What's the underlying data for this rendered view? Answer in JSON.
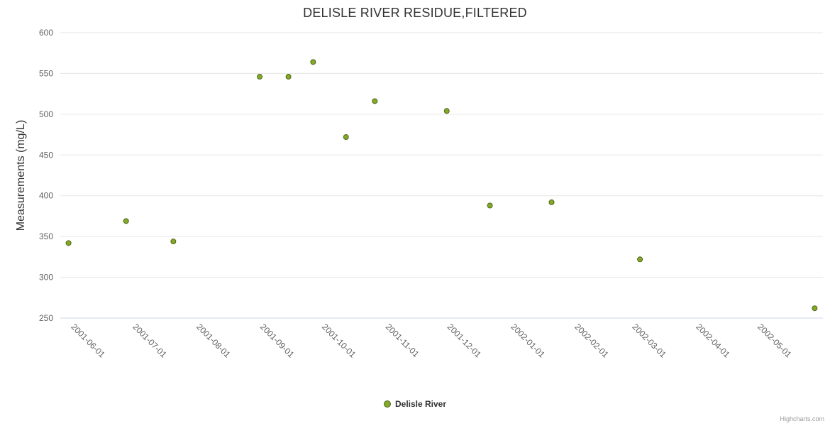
{
  "chart_data": {
    "type": "scatter",
    "title": "DELISLE RIVER RESIDUE,FILTERED",
    "xlabel": "",
    "ylabel": "Measurements (mg/L)",
    "ylim": [
      250,
      600
    ],
    "y_ticks": [
      250,
      300,
      350,
      400,
      450,
      500,
      550,
      600
    ],
    "x_ticks": [
      "2001-06-01",
      "2001-07-01",
      "2001-08-01",
      "2001-09-01",
      "2001-10-01",
      "2001-11-01",
      "2001-12-01",
      "2002-01-01",
      "2002-02-01",
      "2002-03-01",
      "2002-04-01",
      "2002-05-01"
    ],
    "x_range": [
      "2001-05-28",
      "2002-06-03"
    ],
    "grid": true,
    "legend_position": "bottom-center",
    "series": [
      {
        "name": "Delisle River",
        "points": [
          {
            "date": "2001-06-01",
            "value": 342
          },
          {
            "date": "2001-06-29",
            "value": 369
          },
          {
            "date": "2001-07-22",
            "value": 344
          },
          {
            "date": "2001-09-02",
            "value": 546
          },
          {
            "date": "2001-09-16",
            "value": 546
          },
          {
            "date": "2001-09-28",
            "value": 564
          },
          {
            "date": "2001-10-14",
            "value": 472
          },
          {
            "date": "2001-10-28",
            "value": 516
          },
          {
            "date": "2001-12-02",
            "value": 504
          },
          {
            "date": "2001-12-23",
            "value": 388
          },
          {
            "date": "2002-01-22",
            "value": 392
          },
          {
            "date": "2002-03-06",
            "value": 322
          },
          {
            "date": "2002-05-30",
            "value": 262
          }
        ]
      }
    ]
  },
  "legend": {
    "label": "Delisle River"
  },
  "credits": {
    "text": "Highcharts.com"
  },
  "colors": {
    "marker_fill": "#84a926",
    "marker_stroke": "#4f661a",
    "grid": "#e6e6e6",
    "axis_line": "#ccd6eb",
    "tick_label": "#606060",
    "title": "#333333"
  }
}
